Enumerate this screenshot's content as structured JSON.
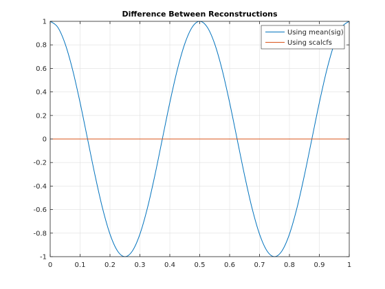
{
  "chart_data": {
    "type": "line",
    "title": "Difference Between Reconstructions",
    "xlabel": "",
    "ylabel": "",
    "xlim": [
      0,
      1
    ],
    "ylim": [
      -1,
      1
    ],
    "xticks": [
      0,
      0.1,
      0.2,
      0.3,
      0.4,
      0.5,
      0.6,
      0.7,
      0.8,
      0.9,
      1
    ],
    "xtick_labels": [
      "0",
      "0.1",
      "0.2",
      "0.3",
      "0.4",
      "0.5",
      "0.6",
      "0.7",
      "0.8",
      "0.9",
      "1"
    ],
    "yticks": [
      -1,
      -0.8,
      -0.6,
      -0.4,
      -0.2,
      0,
      0.2,
      0.4,
      0.6,
      0.8,
      1
    ],
    "ytick_labels": [
      "-1",
      "-0.8",
      "-0.6",
      "-0.4",
      "-0.2",
      "0",
      "0.2",
      "0.4",
      "0.6",
      "0.8",
      "1"
    ],
    "grid": true,
    "legend_position": "top-right",
    "series": [
      {
        "name": "Using mean(sig)",
        "color": "#0072bd",
        "x": [
          0,
          0.025,
          0.05,
          0.075,
          0.1,
          0.125,
          0.15,
          0.175,
          0.2,
          0.225,
          0.25,
          0.275,
          0.3,
          0.325,
          0.35,
          0.375,
          0.4,
          0.425,
          0.45,
          0.475,
          0.5,
          0.525,
          0.55,
          0.575,
          0.6,
          0.625,
          0.65,
          0.675,
          0.7,
          0.725,
          0.75,
          0.775,
          0.8,
          0.825,
          0.85,
          0.875,
          0.9,
          0.925,
          0.95,
          0.975,
          1
        ],
        "y": [
          1,
          0.951,
          0.809,
          0.588,
          0.309,
          0,
          -0.309,
          -0.588,
          -0.809,
          -0.951,
          -1,
          -0.951,
          -0.809,
          -0.588,
          -0.309,
          0,
          0.309,
          0.588,
          0.809,
          0.951,
          1,
          0.951,
          0.809,
          0.588,
          0.309,
          0,
          -0.309,
          -0.588,
          -0.809,
          -0.951,
          -1,
          -0.951,
          -0.809,
          -0.588,
          -0.309,
          0,
          0.309,
          0.588,
          0.809,
          0.951,
          1
        ]
      },
      {
        "name": "Using scalcfs",
        "color": "#d95319",
        "x": [
          0,
          1
        ],
        "y": [
          0,
          0
        ]
      }
    ]
  }
}
